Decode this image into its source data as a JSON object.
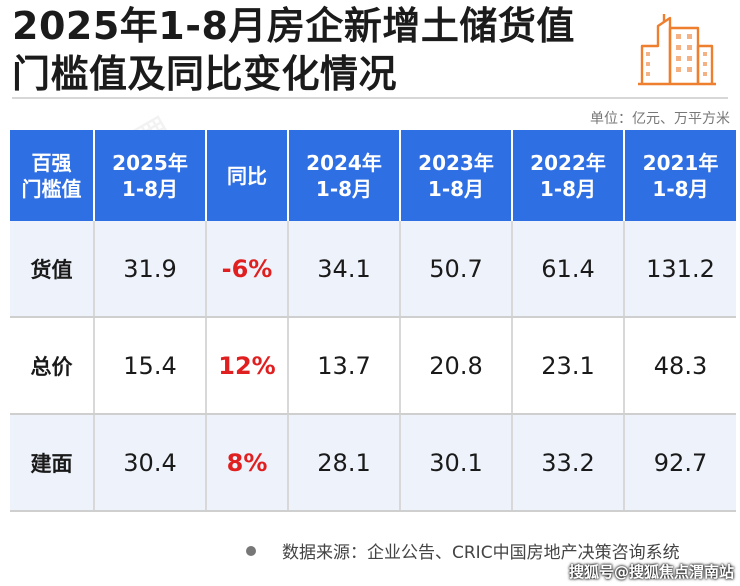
{
  "title_line1": "2025年1-8月房企新增土储货值",
  "title_line2": "门槛值及同比变化情况",
  "unit": "单位：亿元、万平方米",
  "colors": {
    "header_bg": "#2f6fe4",
    "yoy_red": "#e02020",
    "row_tint": "#eef3fb",
    "logo_orange": "#ee7f2f"
  },
  "icons": {
    "logo": "building-icon"
  },
  "chart_data": {
    "type": "table",
    "columns": [
      "百强\n门槛值",
      "2025年\n1-8月",
      "同比",
      "2024年\n1-8月",
      "2023年\n1-8月",
      "2022年\n1-8月",
      "2021年\n1-8月"
    ],
    "rows": [
      [
        "货值",
        "31.9",
        "-6%",
        "34.1",
        "50.7",
        "61.4",
        "131.2"
      ],
      [
        "总价",
        "15.4",
        "12%",
        "13.7",
        "20.8",
        "23.1",
        "48.3"
      ],
      [
        "建面",
        "30.4",
        "8%",
        "28.1",
        "30.1",
        "33.2",
        "92.7"
      ]
    ]
  },
  "footer_source": "数据来源：企业公告、CRIC中国房地产决策咨询系统",
  "sohu_tag": "搜狐号@搜狐焦点渭南站"
}
